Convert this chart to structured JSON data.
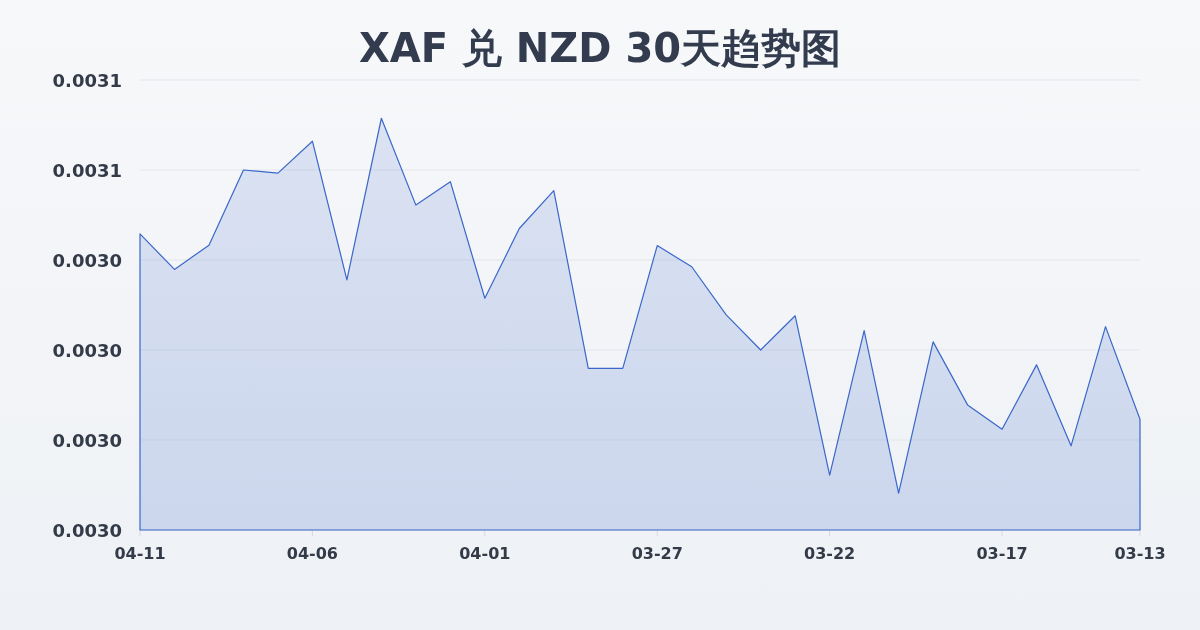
{
  "chart_data": {
    "type": "area",
    "title": "XAF 兑 NZD 30天趋势图",
    "categories": [
      "04-11",
      null,
      null,
      null,
      null,
      "04-06",
      null,
      null,
      null,
      null,
      "04-01",
      null,
      null,
      null,
      null,
      "03-27",
      null,
      null,
      null,
      null,
      "03-22",
      null,
      null,
      null,
      null,
      "03-17",
      null,
      null,
      null,
      "03-13"
    ],
    "series": [
      {
        "color": "#3a67c9",
        "values": [
          0.0030458,
          0.0030379,
          0.0030433,
          0.00306,
          0.0030593,
          0.0030664,
          0.0030356,
          0.0030715,
          0.0030522,
          0.0030574,
          0.0030315,
          0.003047,
          0.0030554,
          0.0030159,
          0.0030159,
          0.0030432,
          0.0030385,
          0.0030278,
          0.00302,
          0.0030276,
          0.0029922,
          0.0030243,
          0.0029882,
          0.0030218,
          0.0030078,
          0.0030024,
          0.0030167,
          0.0029987,
          0.0030252,
          0.0030046
        ]
      }
    ],
    "ylim": [
      0.00298,
      0.00308
    ],
    "yticks": [
      {
        "value": 0.00298,
        "label": "0.0030"
      },
      {
        "value": 0.003,
        "label": "0.0030"
      },
      {
        "value": 0.00302,
        "label": "0.0030"
      },
      {
        "value": 0.00304,
        "label": "0.0030"
      },
      {
        "value": 0.00306,
        "label": "0.0031"
      },
      {
        "value": 0.00308,
        "label": "0.0031"
      }
    ],
    "grid": "y"
  }
}
